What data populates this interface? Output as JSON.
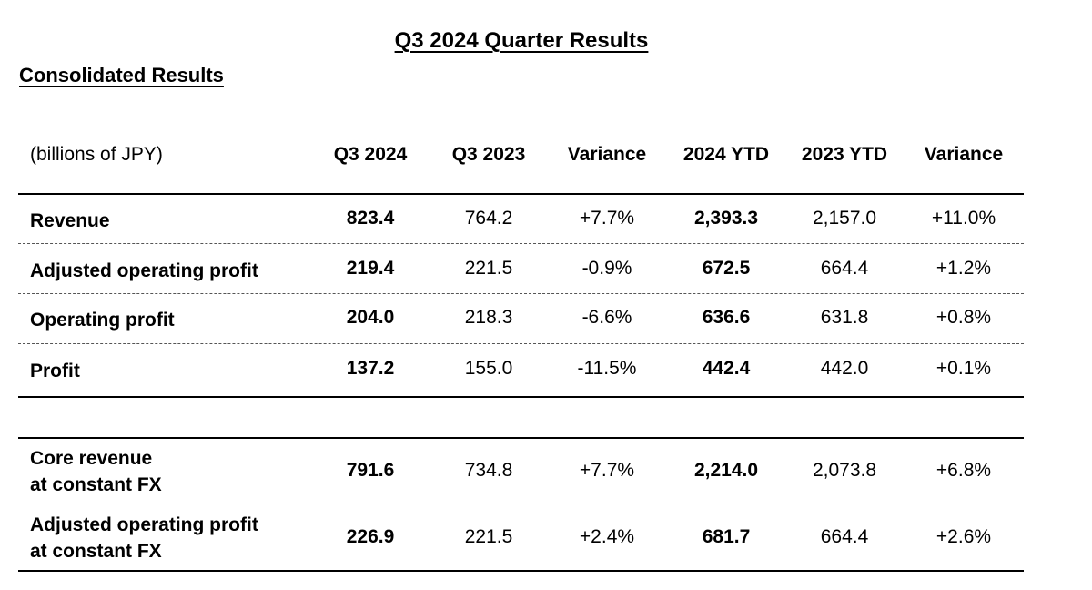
{
  "title": "Q3 2024 Quarter Results",
  "subtitle": "Consolidated Results",
  "unit": "(billions of JPY)",
  "columns": [
    "Q3 2024",
    "Q3 2023",
    "Variance",
    "2024 YTD",
    "2023 YTD",
    "Variance"
  ],
  "rows": [
    {
      "label": "Revenue",
      "values": [
        "823.4",
        "764.2",
        "+7.7%",
        "2,393.3",
        "2,157.0",
        "+11.0%"
      ]
    },
    {
      "label": "Adjusted operating profit",
      "values": [
        "219.4",
        "221.5",
        "-0.9%",
        "672.5",
        "664.4",
        "+1.2%"
      ]
    },
    {
      "label": "Operating profit",
      "values": [
        "204.0",
        "218.3",
        "-6.6%",
        "636.6",
        "631.8",
        "+0.8%"
      ]
    },
    {
      "label": "Profit",
      "values": [
        "137.2",
        "155.0",
        "-11.5%",
        "442.4",
        "442.0",
        "+0.1%"
      ]
    }
  ],
  "fx_rows": [
    {
      "label_line1": "Core revenue",
      "label_line2": "at constant FX",
      "values": [
        "791.6",
        "734.8",
        "+7.7%",
        "2,214.0",
        "2,073.8",
        "+6.8%"
      ]
    },
    {
      "label_line1": "Adjusted operating profit",
      "label_line2": "at constant FX",
      "values": [
        "226.9",
        "221.5",
        "+2.4%",
        "681.7",
        "664.4",
        "+2.6%"
      ]
    }
  ]
}
